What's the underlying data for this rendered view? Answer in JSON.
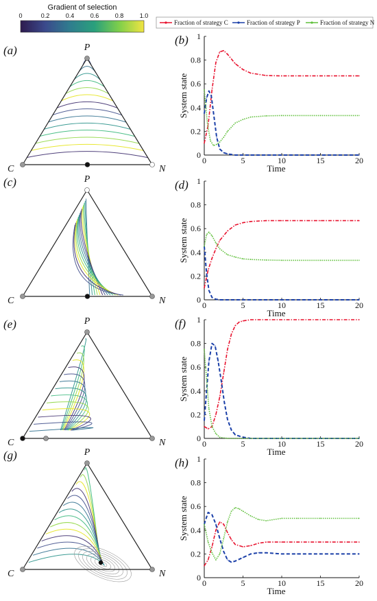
{
  "colorbar": {
    "title": "Gradient of selection",
    "ticks": [
      "0",
      "0.2",
      "0.4",
      "0.6",
      "0.8",
      "1.0"
    ]
  },
  "legend": {
    "items": [
      {
        "label": "Fraction of strategy C",
        "color": "#e8112d"
      },
      {
        "label": "Fraction of strategy P",
        "color": "#1a3fa8"
      },
      {
        "label": "Fraction of strategy N",
        "color": "#5fbf3a"
      }
    ]
  },
  "colors": {
    "C": "#e8112d",
    "P": "#1a3fa8",
    "N": "#5fbf3a"
  },
  "simplex_panels": [
    {
      "label": "(a)",
      "vertices": {
        "top": "P",
        "left": "C",
        "right": "N"
      }
    },
    {
      "label": "(c)",
      "vertices": {
        "top": "P",
        "left": "C",
        "right": "N"
      }
    },
    {
      "label": "(e)",
      "vertices": {
        "top": "P",
        "left": "C",
        "right": "N"
      }
    },
    {
      "label": "(g)",
      "vertices": {
        "top": "P",
        "left": "C",
        "right": "N"
      }
    }
  ],
  "chart_data": [
    {
      "type": "line",
      "panel": "(b)",
      "xlabel": "Time",
      "ylabel": "System state",
      "xlim": [
        0,
        20
      ],
      "ylim": [
        0,
        1
      ],
      "xticks": [
        0,
        5,
        10,
        15,
        20
      ],
      "yticks": [
        0,
        0.2,
        0.4,
        0.6,
        0.8,
        1
      ],
      "series": [
        {
          "name": "C",
          "x": [
            0,
            0.5,
            1,
            1.5,
            2,
            2.5,
            3,
            4,
            5,
            6,
            8,
            10,
            15,
            20
          ],
          "y": [
            0.1,
            0.25,
            0.55,
            0.78,
            0.87,
            0.88,
            0.85,
            0.77,
            0.72,
            0.69,
            0.67,
            0.667,
            0.667,
            0.667
          ]
        },
        {
          "name": "P",
          "x": [
            0,
            0.3,
            0.6,
            0.9,
            1.2,
            1.6,
            2,
            2.5,
            3,
            4,
            6,
            20
          ],
          "y": [
            0.35,
            0.48,
            0.54,
            0.5,
            0.35,
            0.15,
            0.05,
            0.02,
            0.01,
            0.0,
            0.0,
            0.0
          ]
        },
        {
          "name": "N",
          "x": [
            0,
            0.4,
            0.8,
            1.2,
            1.6,
            2,
            2.5,
            3,
            4,
            5,
            6,
            8,
            10,
            15,
            20
          ],
          "y": [
            0.55,
            0.27,
            0.12,
            0.08,
            0.09,
            0.11,
            0.15,
            0.2,
            0.27,
            0.3,
            0.32,
            0.33,
            0.333,
            0.333,
            0.333
          ]
        }
      ]
    },
    {
      "type": "line",
      "panel": "(d)",
      "xlabel": "Time",
      "ylabel": "System state",
      "xlim": [
        0,
        20
      ],
      "ylim": [
        0,
        1
      ],
      "xticks": [
        0,
        5,
        10,
        15,
        20
      ],
      "yticks": [
        0,
        0.2,
        0.4,
        0.6,
        0.8,
        1
      ],
      "series": [
        {
          "name": "C",
          "x": [
            0,
            0.5,
            1,
            1.5,
            2,
            3,
            4,
            5,
            6,
            8,
            10,
            15,
            20
          ],
          "y": [
            0.1,
            0.25,
            0.35,
            0.43,
            0.5,
            0.58,
            0.63,
            0.65,
            0.66,
            0.667,
            0.667,
            0.667,
            0.667
          ]
        },
        {
          "name": "P",
          "x": [
            0,
            0.3,
            0.6,
            1,
            1.5,
            2,
            20
          ],
          "y": [
            0.45,
            0.22,
            0.08,
            0.02,
            0.005,
            0.0,
            0.0
          ]
        },
        {
          "name": "N",
          "x": [
            0,
            0.3,
            0.6,
            1,
            1.5,
            2,
            3,
            4,
            5,
            6,
            8,
            10,
            15,
            20
          ],
          "y": [
            0.45,
            0.55,
            0.57,
            0.54,
            0.48,
            0.43,
            0.38,
            0.36,
            0.345,
            0.34,
            0.335,
            0.333,
            0.333,
            0.333
          ]
        }
      ]
    },
    {
      "type": "line",
      "panel": "(f)",
      "xlabel": "Time",
      "ylabel": "System state",
      "xlim": [
        0,
        20
      ],
      "ylim": [
        0,
        1
      ],
      "xticks": [
        0,
        5,
        10,
        15,
        20
      ],
      "yticks": [
        0,
        0.2,
        0.4,
        0.6,
        0.8,
        1
      ],
      "series": [
        {
          "name": "C",
          "x": [
            0,
            0.5,
            1,
            1.5,
            2,
            2.5,
            3,
            3.5,
            4,
            4.5,
            5,
            6,
            8,
            20
          ],
          "y": [
            0.1,
            0.08,
            0.1,
            0.2,
            0.35,
            0.55,
            0.75,
            0.88,
            0.95,
            0.98,
            0.99,
            1.0,
            1.0,
            1.0
          ]
        },
        {
          "name": "P",
          "x": [
            0,
            0.3,
            0.6,
            1,
            1.4,
            1.8,
            2.2,
            2.6,
            3,
            3.5,
            4,
            5,
            6,
            20
          ],
          "y": [
            0.15,
            0.4,
            0.65,
            0.8,
            0.78,
            0.65,
            0.48,
            0.3,
            0.16,
            0.07,
            0.03,
            0.01,
            0.0,
            0.0
          ]
        },
        {
          "name": "N",
          "x": [
            0,
            0.3,
            0.6,
            1,
            1.5,
            2,
            3,
            20
          ],
          "y": [
            0.75,
            0.5,
            0.25,
            0.1,
            0.04,
            0.01,
            0.0,
            0.0
          ]
        }
      ]
    },
    {
      "type": "line",
      "panel": "(h)",
      "xlabel": "Time",
      "ylabel": "System state",
      "xlim": [
        0,
        20
      ],
      "ylim": [
        0,
        1
      ],
      "xticks": [
        0,
        5,
        10,
        15,
        20
      ],
      "yticks": [
        0,
        0.2,
        0.4,
        0.6,
        0.8,
        1
      ],
      "series": [
        {
          "name": "C",
          "x": [
            0,
            0.5,
            1,
            1.5,
            2,
            2.5,
            3,
            3.5,
            4,
            5,
            6,
            7,
            8,
            10,
            12,
            15,
            20
          ],
          "y": [
            0.1,
            0.15,
            0.26,
            0.4,
            0.47,
            0.45,
            0.38,
            0.32,
            0.28,
            0.26,
            0.27,
            0.29,
            0.3,
            0.3,
            0.3,
            0.3,
            0.3
          ]
        },
        {
          "name": "P",
          "x": [
            0,
            0.5,
            1,
            1.5,
            2,
            2.5,
            3,
            3.5,
            4,
            5,
            6,
            7,
            8,
            10,
            12,
            15,
            20
          ],
          "y": [
            0.45,
            0.55,
            0.53,
            0.45,
            0.33,
            0.22,
            0.15,
            0.13,
            0.14,
            0.17,
            0.2,
            0.21,
            0.21,
            0.2,
            0.2,
            0.2,
            0.2
          ]
        },
        {
          "name": "N",
          "x": [
            0,
            0.5,
            1,
            1.5,
            2,
            2.5,
            3,
            3.5,
            4,
            4.5,
            5,
            6,
            7,
            8,
            10,
            12,
            15,
            20
          ],
          "y": [
            0.45,
            0.3,
            0.21,
            0.15,
            0.2,
            0.33,
            0.47,
            0.56,
            0.59,
            0.58,
            0.56,
            0.52,
            0.49,
            0.48,
            0.5,
            0.5,
            0.5,
            0.5
          ]
        }
      ]
    }
  ]
}
